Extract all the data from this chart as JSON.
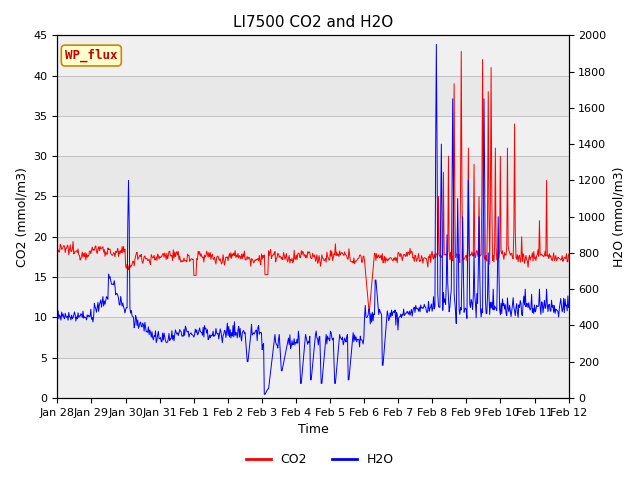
{
  "title": "LI7500 CO2 and H2O",
  "xlabel": "Time",
  "ylabel_left": "CO2 (mmol/m3)",
  "ylabel_right": "H2O (mmol/m3)",
  "annotation_text": "WP_flux",
  "annotation_bg": "#ffffcc",
  "annotation_border": "#cc8800",
  "annotation_text_color": "#cc0000",
  "co2_color": "#ff0000",
  "h2o_color": "#0000ff",
  "ylim_left": [
    0,
    45
  ],
  "ylim_right": [
    0,
    2000
  ],
  "xtick_labels": [
    "Jan 28",
    "Jan 29",
    "Jan 30",
    "Jan 31",
    "Feb 1",
    "Feb 2",
    "Feb 3",
    "Feb 4",
    "Feb 5",
    "Feb 6",
    "Feb 7",
    "Feb 8",
    "Feb 9",
    "Feb 10",
    "Feb 11",
    "Feb 12"
  ],
  "legend_co2": "CO2",
  "legend_h2o": "H2O",
  "plot_bg_color": "#e8e8e8",
  "band_color_light": "#f0f0f0",
  "title_fontsize": 11,
  "axis_fontsize": 9,
  "tick_fontsize": 8,
  "legend_fontsize": 9
}
